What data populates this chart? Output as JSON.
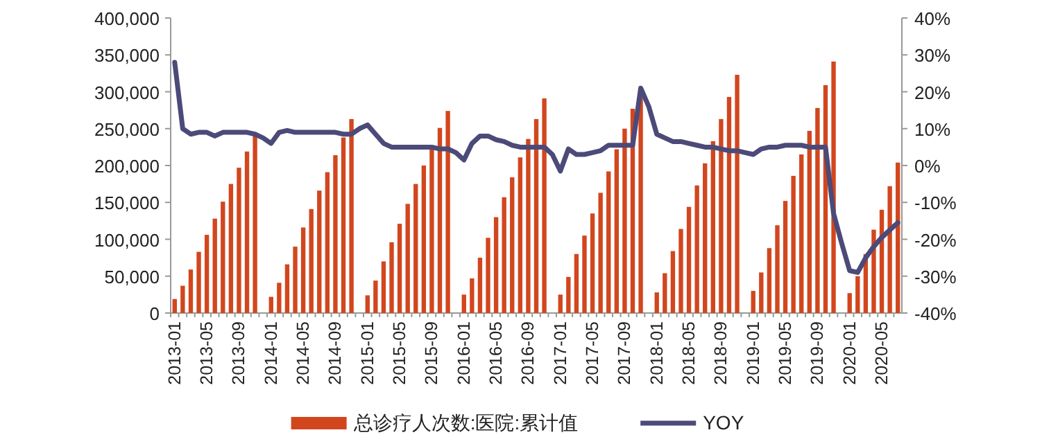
{
  "chart_data": {
    "type": "bar",
    "categories": [
      "2013-01",
      null,
      null,
      null,
      "2013-05",
      null,
      null,
      null,
      "2013-09",
      null,
      null,
      null,
      "2014-01",
      null,
      null,
      null,
      "2014-05",
      null,
      null,
      null,
      "2014-09",
      null,
      null,
      null,
      "2015-01",
      null,
      null,
      null,
      "2015-05",
      null,
      null,
      null,
      "2015-09",
      null,
      null,
      null,
      "2016-01",
      null,
      null,
      null,
      "2016-05",
      null,
      null,
      null,
      "2016-09",
      null,
      null,
      null,
      "2017-01",
      null,
      null,
      null,
      "2017-05",
      null,
      null,
      null,
      "2017-09",
      null,
      null,
      null,
      "2018-01",
      null,
      null,
      null,
      "2018-05",
      null,
      null,
      null,
      "2018-09",
      null,
      null,
      null,
      "2019-01",
      null,
      null,
      null,
      "2019-05",
      null,
      null,
      null,
      "2019-09",
      null,
      null,
      null,
      "2020-01",
      null,
      null,
      null,
      "2020-05",
      null,
      null
    ],
    "series": [
      {
        "name": "总诊疗人次数:医院:累计值",
        "color": "#d2461e",
        "values": [
          19000,
          37000,
          59000,
          83000,
          106000,
          128000,
          151000,
          175000,
          197000,
          219000,
          242000,
          null,
          22000,
          41000,
          66000,
          90000,
          116000,
          141000,
          166000,
          191000,
          214000,
          238000,
          263000,
          null,
          24000,
          44000,
          70000,
          96000,
          121000,
          148000,
          175000,
          200000,
          224000,
          251000,
          274000,
          null,
          25000,
          47000,
          75000,
          102000,
          130000,
          157000,
          184000,
          211000,
          236000,
          263000,
          291000,
          null,
          25000,
          49000,
          80000,
          105000,
          135000,
          163000,
          192000,
          222000,
          250000,
          277000,
          292000,
          null,
          28000,
          54000,
          84000,
          114000,
          144000,
          173000,
          203000,
          233000,
          263000,
          293000,
          323000,
          null,
          30000,
          55000,
          88000,
          119000,
          152000,
          186000,
          215000,
          247000,
          278000,
          309000,
          341000,
          null,
          27000,
          50000,
          80000,
          113000,
          140000,
          172000,
          204000
        ]
      },
      {
        "name": "YOY",
        "type": "line",
        "axis": "y2",
        "color": "#4b4a78",
        "values": [
          28,
          10,
          8.5,
          9,
          9,
          8,
          9,
          9,
          9,
          9,
          8.5,
          7.5,
          6,
          9,
          9.5,
          9,
          9,
          9,
          9,
          9,
          9,
          8.5,
          8.5,
          10,
          11,
          8.5,
          6,
          5,
          5,
          5,
          5,
          5,
          5,
          4.5,
          4.5,
          3.5,
          1.5,
          6,
          8,
          8,
          7,
          6.5,
          5.5,
          5,
          5,
          5,
          5,
          3,
          -1.5,
          4.5,
          3,
          3,
          3.5,
          4,
          5.5,
          5.5,
          5.5,
          5.5,
          21,
          16,
          8.5,
          7.5,
          6.5,
          6.5,
          6,
          5.5,
          5,
          5,
          4.5,
          4,
          4,
          3.5,
          3,
          4.5,
          5,
          5,
          5.5,
          5.5,
          5.5,
          5,
          5,
          5,
          -13,
          -21,
          -28.5,
          -29,
          -25,
          -22,
          -19.5,
          -17.5,
          -15.5
        ]
      }
    ],
    "ylim": [
      0,
      400000
    ],
    "yticks": [
      {
        "value": 0,
        "label": "0"
      },
      {
        "value": 50000,
        "label": "50,000"
      },
      {
        "value": 100000,
        "label": "100,000"
      },
      {
        "value": 150000,
        "label": "150,000"
      },
      {
        "value": 200000,
        "label": "200,000"
      },
      {
        "value": 250000,
        "label": "250,000"
      },
      {
        "value": 300000,
        "label": "300,000"
      },
      {
        "value": 350000,
        "label": "350,000"
      },
      {
        "value": 400000,
        "label": "400,000"
      }
    ],
    "y2lim": [
      -40,
      40
    ],
    "y2ticks": [
      {
        "value": -40,
        "label": "-40%"
      },
      {
        "value": -30,
        "label": "-30%"
      },
      {
        "value": -20,
        "label": "-20%"
      },
      {
        "value": -10,
        "label": "-10%"
      },
      {
        "value": 0,
        "label": "0%"
      },
      {
        "value": 10,
        "label": "10%"
      },
      {
        "value": 20,
        "label": "20%"
      },
      {
        "value": 30,
        "label": "30%"
      },
      {
        "value": 40,
        "label": "40%"
      }
    ],
    "legend": "bottom"
  }
}
